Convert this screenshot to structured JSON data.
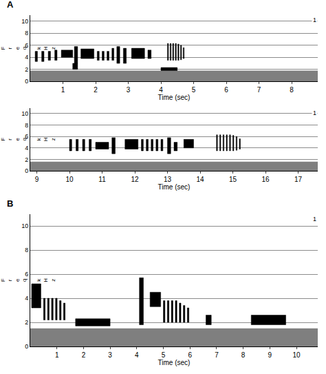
{
  "chart_data": [
    {
      "type": "spectrogram",
      "label": "A",
      "corner_text": "1",
      "x_label": "Time (sec)",
      "y_label": "Freq kHz",
      "xlim": [
        0,
        8.8
      ],
      "xticks": [
        1,
        2,
        3,
        4,
        5,
        6,
        7,
        8
      ],
      "ylim": [
        0,
        11
      ],
      "yticks": [
        0,
        2,
        4,
        6,
        8,
        10
      ],
      "grid": true,
      "color": "#000000",
      "noise": [
        0,
        1.8
      ],
      "segments": [
        [
          0.15,
          0.22,
          3.3,
          5.0
        ],
        [
          0.35,
          0.42,
          3.3,
          5.0
        ],
        [
          0.55,
          0.62,
          3.5,
          5.0
        ],
        [
          0.75,
          0.82,
          3.5,
          5.2
        ],
        [
          0.95,
          1.3,
          4.0,
          5.2
        ],
        [
          1.35,
          1.45,
          3.0,
          5.8
        ],
        [
          1.3,
          1.45,
          2.0,
          3.0
        ],
        [
          1.55,
          1.95,
          3.8,
          5.4
        ],
        [
          2.05,
          2.11,
          3.5,
          5.0
        ],
        [
          2.2,
          2.26,
          3.5,
          5.0
        ],
        [
          2.35,
          2.41,
          3.5,
          5.0
        ],
        [
          2.5,
          2.56,
          3.5,
          5.5
        ],
        [
          2.65,
          2.74,
          3.0,
          5.8
        ],
        [
          2.85,
          2.94,
          3.0,
          5.5
        ],
        [
          3.1,
          3.5,
          3.8,
          5.5
        ],
        [
          3.6,
          3.7,
          3.8,
          5.2
        ],
        [
          4.0,
          4.5,
          1.8,
          2.3
        ],
        [
          4.2,
          4.23,
          3.5,
          6.3
        ],
        [
          4.28,
          4.31,
          3.5,
          6.3
        ],
        [
          4.36,
          4.39,
          3.5,
          6.3
        ],
        [
          4.44,
          4.47,
          3.5,
          6.3
        ],
        [
          4.52,
          4.55,
          3.5,
          6.2
        ],
        [
          4.6,
          4.63,
          3.6,
          6.0
        ],
        [
          4.68,
          4.71,
          3.8,
          5.6
        ]
      ]
    },
    {
      "type": "spectrogram",
      "corner_text": "1",
      "x_label": "Time (sec)",
      "y_label": "Freq kHz",
      "xlim": [
        8.8,
        17.6
      ],
      "xticks": [
        9,
        10,
        11,
        12,
        13,
        14,
        15,
        16,
        17
      ],
      "ylim": [
        0,
        11
      ],
      "yticks": [
        0,
        2,
        4,
        6,
        8,
        10
      ],
      "grid": true,
      "color": "#000000",
      "noise": [
        0,
        1.6
      ],
      "segments": [
        [
          10.0,
          10.07,
          3.5,
          5.5
        ],
        [
          10.2,
          10.27,
          3.5,
          5.5
        ],
        [
          10.4,
          10.47,
          3.5,
          5.5
        ],
        [
          10.6,
          10.67,
          3.5,
          5.5
        ],
        [
          10.8,
          11.2,
          3.8,
          5.0
        ],
        [
          11.3,
          11.4,
          3.0,
          5.8
        ],
        [
          11.7,
          12.1,
          3.8,
          5.5
        ],
        [
          12.2,
          12.26,
          3.5,
          5.5
        ],
        [
          12.35,
          12.41,
          3.5,
          5.5
        ],
        [
          12.5,
          12.56,
          3.5,
          5.5
        ],
        [
          12.65,
          12.71,
          3.5,
          5.5
        ],
        [
          12.8,
          12.86,
          3.5,
          5.5
        ],
        [
          13.0,
          13.1,
          3.0,
          5.8
        ],
        [
          13.2,
          13.3,
          3.5,
          5.0
        ],
        [
          13.5,
          13.8,
          4.0,
          5.5
        ],
        [
          14.5,
          14.53,
          3.5,
          6.3
        ],
        [
          14.6,
          14.63,
          3.5,
          6.3
        ],
        [
          14.7,
          14.73,
          3.5,
          6.3
        ],
        [
          14.8,
          14.83,
          3.5,
          6.3
        ],
        [
          14.9,
          14.93,
          3.5,
          6.3
        ],
        [
          15.0,
          15.03,
          3.5,
          6.2
        ],
        [
          15.1,
          15.13,
          3.6,
          6.0
        ],
        [
          15.2,
          15.23,
          3.8,
          5.6
        ]
      ]
    },
    {
      "type": "spectrogram",
      "label": "B",
      "corner_text": "1",
      "x_label": "Time (sec)",
      "y_label": "Freq kHz",
      "xlim": [
        0,
        10.8
      ],
      "xticks": [
        1,
        2,
        3,
        4,
        5,
        6,
        7,
        8,
        9,
        10
      ],
      "ylim": [
        0,
        11
      ],
      "yticks": [
        0,
        2,
        4,
        6,
        8,
        10
      ],
      "grid": true,
      "color": "#000000",
      "noise": [
        0,
        1.5
      ],
      "segments": [
        [
          0.05,
          0.4,
          3.2,
          5.2
        ],
        [
          0.5,
          0.56,
          2.2,
          4.0
        ],
        [
          0.65,
          0.71,
          2.2,
          4.0
        ],
        [
          0.8,
          0.86,
          2.2,
          4.0
        ],
        [
          0.95,
          1.01,
          2.2,
          4.0
        ],
        [
          1.1,
          1.16,
          2.2,
          3.8
        ],
        [
          1.25,
          1.31,
          2.2,
          3.6
        ],
        [
          1.7,
          3.0,
          1.7,
          2.3
        ],
        [
          4.1,
          4.25,
          1.8,
          5.7
        ],
        [
          4.5,
          4.9,
          3.3,
          4.5
        ],
        [
          5.0,
          5.06,
          2.0,
          3.8
        ],
        [
          5.15,
          5.21,
          2.0,
          3.8
        ],
        [
          5.3,
          5.36,
          2.0,
          3.8
        ],
        [
          5.45,
          5.51,
          2.0,
          3.8
        ],
        [
          5.6,
          5.66,
          2.0,
          3.6
        ],
        [
          5.75,
          5.81,
          2.0,
          3.4
        ],
        [
          5.9,
          5.96,
          2.0,
          3.2
        ],
        [
          6.6,
          6.8,
          1.8,
          2.6
        ],
        [
          8.3,
          9.6,
          1.8,
          2.6
        ]
      ]
    }
  ]
}
